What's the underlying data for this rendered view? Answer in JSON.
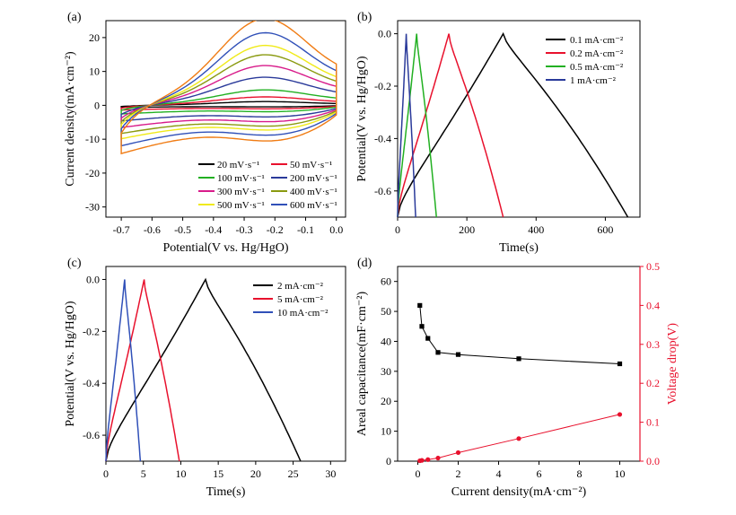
{
  "chart_data": [
    {
      "panel_label": "(a)",
      "type": "line",
      "title": "",
      "xlabel": "Potential(V vs. Hg/HgO)",
      "ylabel": "Current density(mA·cm⁻²)",
      "xlim": [
        -0.75,
        0.03
      ],
      "ylim": [
        -33,
        25
      ],
      "xticks": [
        -0.7,
        -0.6,
        -0.5,
        -0.4,
        -0.3,
        -0.2,
        -0.1,
        0.0
      ],
      "xtick_labels": [
        "-0.7",
        "-0.6",
        "-0.5",
        "-0.4",
        "-0.3",
        "-0.2",
        "-0.1",
        "0.0"
      ],
      "yticks": [
        -30,
        -20,
        -10,
        0,
        10,
        20
      ],
      "ytick_labels": [
        "-30",
        "-20",
        "-10",
        "0",
        "10",
        "20"
      ],
      "legend_location": "lower-right",
      "series": [
        {
          "name": "20 mV·s⁻¹",
          "color": "#000000",
          "amplitude": 0.8
        },
        {
          "name": "50 mV·s⁻¹",
          "color": "#e8112d",
          "amplitude": 1.8
        },
        {
          "name": "100 mV·s⁻¹",
          "color": "#22b022",
          "amplitude": 3.3
        },
        {
          "name": "200 mV·s⁻¹",
          "color": "#2a3a9a",
          "amplitude": 6.0
        },
        {
          "name": "300 mV·s⁻¹",
          "color": "#d81b8a",
          "amplitude": 8.5
        },
        {
          "name": "400 mV·s⁻¹",
          "color": "#8a9a10",
          "amplitude": 10.8
        },
        {
          "name": "500 mV·s⁻¹",
          "color": "#f0ea1a",
          "amplitude": 12.8
        },
        {
          "name": "600 mV·s⁻¹",
          "color": "#3050b8",
          "amplitude": 15.5
        },
        {
          "name": "",
          "color": "#f07c14",
          "amplitude": 18.5
        }
      ]
    },
    {
      "panel_label": "(b)",
      "type": "line",
      "title": "",
      "xlabel": "Time(s)",
      "ylabel": "Potential(V vs. Hg/HgO)",
      "xlim": [
        0,
        700
      ],
      "ylim": [
        -0.7,
        0.05
      ],
      "xticks": [
        0,
        200,
        400,
        600
      ],
      "xtick_labels": [
        "0",
        "200",
        "400",
        "600"
      ],
      "yticks": [
        0.0,
        -0.2,
        -0.4,
        -0.6
      ],
      "ytick_labels": [
        "0.0",
        "-0.2",
        "-0.4",
        "-0.6"
      ],
      "legend_location": "top-right",
      "series": [
        {
          "name": "0.1 mA·cm⁻²",
          "color": "#000000",
          "charge_end": 305,
          "discharge_end": 665
        },
        {
          "name": "0.2 mA·cm⁻²",
          "color": "#e8112d",
          "charge_end": 148,
          "discharge_end": 305
        },
        {
          "name": "0.5 mA·cm⁻²",
          "color": "#22b022",
          "charge_end": 55,
          "discharge_end": 112
        },
        {
          "name": "1 mA·cm⁻²",
          "color": "#2a3a9a",
          "charge_end": 25,
          "discharge_end": 52
        }
      ]
    },
    {
      "panel_label": "(c)",
      "type": "line",
      "title": "",
      "xlabel": "Time(s)",
      "ylabel": "Potential(V vs. Hg/HgO)",
      "xlim": [
        0,
        32
      ],
      "ylim": [
        -0.7,
        0.05
      ],
      "xticks": [
        0,
        5,
        10,
        15,
        20,
        25,
        30
      ],
      "xtick_labels": [
        "0",
        "5",
        "10",
        "15",
        "20",
        "25",
        "30"
      ],
      "yticks": [
        0.0,
        -0.2,
        -0.4,
        -0.6
      ],
      "ytick_labels": [
        "0.0",
        "-0.2",
        "-0.4",
        "-0.6"
      ],
      "legend_location": "top-right",
      "series": [
        {
          "name": "2 mA·cm⁻²",
          "color": "#000000",
          "charge_end": 13.3,
          "discharge_end": 26.0
        },
        {
          "name": "5 mA·cm⁻²",
          "color": "#e8112d",
          "charge_end": 5.1,
          "discharge_end": 9.8
        },
        {
          "name": "10 mA·cm⁻²",
          "color": "#3050b8",
          "charge_end": 2.5,
          "discharge_end": 4.6
        }
      ]
    },
    {
      "panel_label": "(d)",
      "type": "scatter",
      "title": "",
      "xlabel": "Current density(mA·cm⁻²)",
      "ylabel": "Areal capacitance(mF·cm⁻²)",
      "ylabel_right": "Voltage drop(V)",
      "xlim": [
        -1,
        11
      ],
      "ylim": [
        0,
        65
      ],
      "ylim_right": [
        0,
        0.5
      ],
      "xticks": [
        0,
        2,
        4,
        6,
        8,
        10
      ],
      "xtick_labels": [
        "0",
        "2",
        "4",
        "6",
        "8",
        "10"
      ],
      "yticks": [
        0,
        10,
        20,
        30,
        40,
        50,
        60
      ],
      "ytick_labels": [
        "0",
        "10",
        "20",
        "30",
        "40",
        "50",
        "60"
      ],
      "yticks_right": [
        0.0,
        0.1,
        0.2,
        0.3,
        0.4,
        0.5
      ],
      "ytick_labels_right": [
        "0.0",
        "0.1",
        "0.2",
        "0.3",
        "0.4",
        "0.5"
      ],
      "right_axis_color": "#e8112d",
      "x": [
        0.1,
        0.2,
        0.5,
        1,
        2,
        5,
        10
      ],
      "series": [
        {
          "name": "Areal capacitance",
          "axis": "left",
          "color": "#000000",
          "values": [
            52,
            45,
            41,
            36.3,
            35.6,
            34.2,
            32.5
          ]
        },
        {
          "name": "Voltage drop",
          "axis": "right",
          "color": "#e8112d",
          "values": [
            0.001,
            0.002,
            0.004,
            0.008,
            0.022,
            0.058,
            0.12
          ]
        }
      ]
    }
  ]
}
